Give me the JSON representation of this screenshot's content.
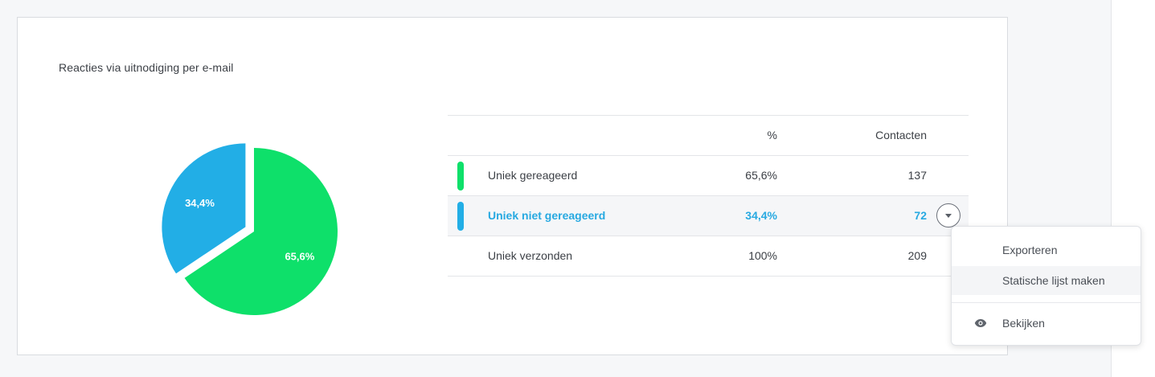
{
  "card": {
    "title": "Reacties via uitnodiging per e-mail"
  },
  "chart_data": {
    "type": "pie",
    "categories": [
      "Uniek gereageerd",
      "Uniek niet gereageerd"
    ],
    "values": [
      65.6,
      34.4
    ],
    "labels": [
      "65,6%",
      "34,4%"
    ],
    "colors": [
      "#0ee06a",
      "#22aee6"
    ],
    "exploded_slice": "Uniek niet gereageerd"
  },
  "table": {
    "headers": {
      "label": "",
      "percent": "%",
      "contacts": "Contacten"
    },
    "rows": [
      {
        "label": "Uniek gereageerd",
        "percent": "65,6%",
        "contacts": "137",
        "color": "#0ee06a"
      },
      {
        "label": "Uniek niet gereageerd",
        "percent": "34,4%",
        "contacts": "72",
        "color": "#22aee6",
        "active": true
      },
      {
        "label": "Uniek verzonden",
        "percent": "100%",
        "contacts": "209"
      }
    ]
  },
  "row_menu": {
    "icon": "chevron-down-icon",
    "items": [
      {
        "label": "Exporteren"
      },
      {
        "label": "Statische lijst maken"
      },
      {
        "label": "Bekijken",
        "icon": "eye-icon"
      }
    ]
  }
}
